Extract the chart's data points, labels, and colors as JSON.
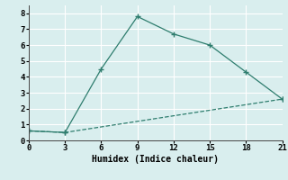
{
  "line1_x": [
    0,
    3,
    6,
    9,
    12,
    15,
    18,
    21
  ],
  "line1_y": [
    0.6,
    0.5,
    4.5,
    7.8,
    6.7,
    6.0,
    4.3,
    2.6
  ],
  "line2_x": [
    0,
    3,
    21
  ],
  "line2_y": [
    0.6,
    0.5,
    2.6
  ],
  "color": "#2e7d6e",
  "xlabel": "Humidex (Indice chaleur)",
  "xlim": [
    0,
    21
  ],
  "ylim": [
    0,
    8.5
  ],
  "xticks": [
    0,
    3,
    6,
    9,
    12,
    15,
    18,
    21
  ],
  "yticks": [
    0,
    1,
    2,
    3,
    4,
    5,
    6,
    7,
    8
  ],
  "bg_color": "#d9eeee",
  "grid_color": "#ffffff",
  "font_family": "monospace"
}
